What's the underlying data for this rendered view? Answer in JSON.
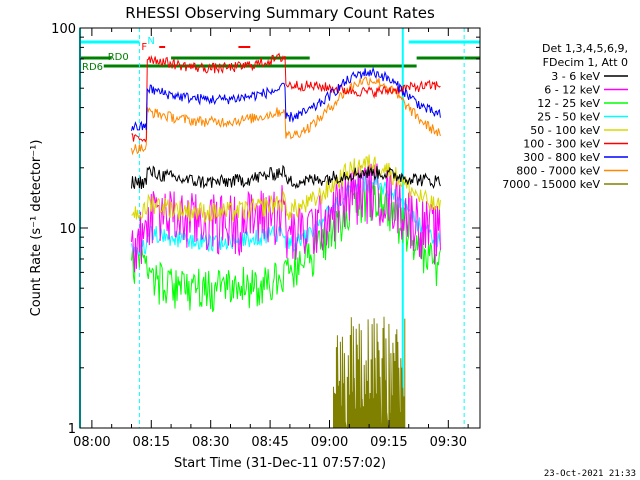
{
  "chart_data": {
    "type": "line",
    "title": "RHESSI Observing Summary Count Rates",
    "xlabel": "Start Time (31-Dec-11 07:57:02)",
    "ylabel": "Count Rate (s⁻¹ detector⁻¹)",
    "y_scale": "log",
    "ylim": [
      1,
      100
    ],
    "xlim_minutes_after_0800": [
      -3,
      98
    ],
    "x_tick_labels": [
      "08:00",
      "08:15",
      "08:30",
      "08:45",
      "09:00",
      "09:15",
      "09:30"
    ],
    "y_tick_labels": [
      "1",
      "10",
      "100"
    ],
    "legend_header": [
      "Det 1,3,4,5,6,9,",
      "FDecim 1, Att 0"
    ],
    "legend_position": "right",
    "series": [
      {
        "name": "3 - 6 keV",
        "color": "#000000"
      },
      {
        "name": "6 - 12 keV",
        "color": "#ff00ff"
      },
      {
        "name": "12 - 25 keV",
        "color": "#00ff00"
      },
      {
        "name": "25 - 50 keV",
        "color": "#00ffff"
      },
      {
        "name": "50 - 100 keV",
        "color": "#d8d800"
      },
      {
        "name": "100 - 300 keV",
        "color": "#ff0000"
      },
      {
        "name": "300 - 800 keV",
        "color": "#0000ff"
      },
      {
        "name": "800 - 7000 keV",
        "color": "#ff8800"
      },
      {
        "name": "7000 - 15000 keV",
        "color": "#808000"
      }
    ],
    "annotations": {
      "flag_labels": [
        "RD0",
        "RD6",
        "N",
        "F"
      ]
    }
  },
  "timestamp": "23-Oct-2021 21:33"
}
